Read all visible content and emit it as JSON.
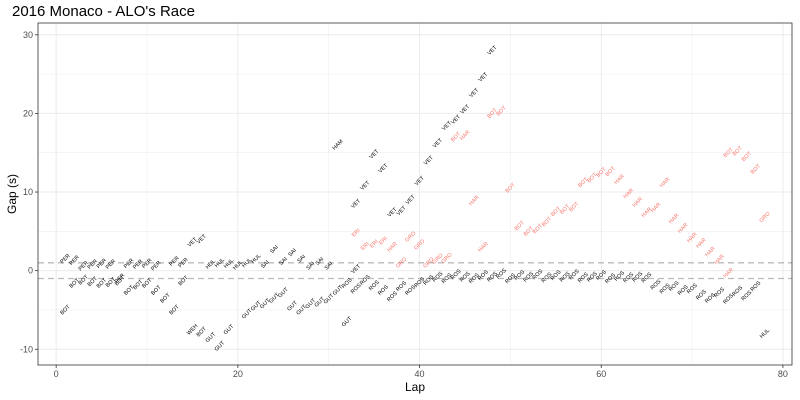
{
  "title": "2016 Monaco - ALO's Race",
  "chart_data": {
    "type": "scatter",
    "title": "2016 Monaco - ALO's Race",
    "xlabel": "Lap",
    "ylabel": "Gap (s)",
    "xlim": [
      -2,
      81
    ],
    "ylim": [
      -12,
      31.5
    ],
    "x_ticks": [
      0,
      20,
      40,
      60,
      80
    ],
    "y_ticks": [
      -10,
      0,
      10,
      20,
      30
    ],
    "reference_lines": [
      1,
      -1
    ],
    "grid": true,
    "colors": {
      "default": "#000000",
      "highlight": "#f8766d",
      "refline": "#bbbbbb",
      "panel_border": "#333333",
      "grid": "#ebebeb"
    },
    "series": [
      {
        "style": "default",
        "points": [
          {
            "x": 1,
            "y": 1.5,
            "label": "PER"
          },
          {
            "x": 1,
            "y": -5,
            "label": "BOT"
          },
          {
            "x": 2,
            "y": 1.3,
            "label": "PER"
          },
          {
            "x": 2,
            "y": -1.6,
            "label": "BOT"
          },
          {
            "x": 3,
            "y": 0.6,
            "label": "PER"
          },
          {
            "x": 3,
            "y": -1.2,
            "label": "BOT"
          },
          {
            "x": 4,
            "y": 0.8,
            "label": "PER"
          },
          {
            "x": 4,
            "y": -1.4,
            "label": "BOT"
          },
          {
            "x": 5,
            "y": 0.9,
            "label": "PER"
          },
          {
            "x": 5,
            "y": -1.6,
            "label": "BOT"
          },
          {
            "x": 6,
            "y": 0.8,
            "label": "PER"
          },
          {
            "x": 6,
            "y": -1.5,
            "label": "BOT"
          },
          {
            "x": 7,
            "y": -1.0,
            "label": "PER"
          },
          {
            "x": 7,
            "y": -1.3,
            "label": "BOT"
          },
          {
            "x": 8,
            "y": 0.9,
            "label": "PER"
          },
          {
            "x": 8,
            "y": -2.5,
            "label": "BOT"
          },
          {
            "x": 9,
            "y": 0.8,
            "label": "PER"
          },
          {
            "x": 9,
            "y": -1.8,
            "label": "BOT"
          },
          {
            "x": 10,
            "y": 0.9,
            "label": "PER"
          },
          {
            "x": 10,
            "y": -1.6,
            "label": "BOT"
          },
          {
            "x": 11,
            "y": 0.6,
            "label": "PER"
          },
          {
            "x": 11,
            "y": -2.5,
            "label": "BOT"
          },
          {
            "x": 12,
            "y": -3.5,
            "label": "BOT"
          },
          {
            "x": 13,
            "y": -5.0,
            "label": "BOT"
          },
          {
            "x": 14,
            "y": 1.0,
            "label": "PER"
          },
          {
            "x": 14,
            "y": -1.3,
            "label": "BOT"
          },
          {
            "x": 13,
            "y": 1.2,
            "label": "PER"
          },
          {
            "x": 15,
            "y": 3.6,
            "label": "VET"
          },
          {
            "x": 16,
            "y": 4.0,
            "label": "VET"
          },
          {
            "x": 15,
            "y": -7.5,
            "label": "WEH"
          },
          {
            "x": 16,
            "y": -7.8,
            "label": "BOT"
          },
          {
            "x": 17,
            "y": 0.8,
            "label": "HUL"
          },
          {
            "x": 18,
            "y": 1.0,
            "label": "HUL"
          },
          {
            "x": 19,
            "y": 0.9,
            "label": "HUL"
          },
          {
            "x": 20,
            "y": 0.7,
            "label": "HUL"
          },
          {
            "x": 21,
            "y": 1.0,
            "label": "HUL"
          },
          {
            "x": 22,
            "y": 1.5,
            "label": "HUL"
          },
          {
            "x": 17,
            "y": -8.5,
            "label": "GUT"
          },
          {
            "x": 18,
            "y": -9.6,
            "label": "GUT"
          },
          {
            "x": 19,
            "y": -7.5,
            "label": "GUT"
          },
          {
            "x": 21,
            "y": -5.5,
            "label": "GUT"
          },
          {
            "x": 22,
            "y": -4.5,
            "label": "GUT"
          },
          {
            "x": 23,
            "y": -4.2,
            "label": "GUT"
          },
          {
            "x": 24,
            "y": -3.5,
            "label": "GUT"
          },
          {
            "x": 25,
            "y": -2.8,
            "label": "GUT"
          },
          {
            "x": 26,
            "y": -4.5,
            "label": "GUT"
          },
          {
            "x": 27,
            "y": -5.0,
            "label": "GUT"
          },
          {
            "x": 28,
            "y": -4.2,
            "label": "GUT"
          },
          {
            "x": 29,
            "y": -4.0,
            "label": "GUT"
          },
          {
            "x": 30,
            "y": -3.6,
            "label": "GUT"
          },
          {
            "x": 31,
            "y": -2.5,
            "label": "GUT"
          },
          {
            "x": 32,
            "y": -6.5,
            "label": "GUT"
          },
          {
            "x": 23,
            "y": 0.8,
            "label": "SAI"
          },
          {
            "x": 24,
            "y": 2.7,
            "label": "SAI"
          },
          {
            "x": 25,
            "y": 1.2,
            "label": "SAI"
          },
          {
            "x": 26,
            "y": 2.3,
            "label": "SAI"
          },
          {
            "x": 27,
            "y": 1.5,
            "label": "SAI"
          },
          {
            "x": 28,
            "y": 0.6,
            "label": "SAI"
          },
          {
            "x": 29,
            "y": 1.2,
            "label": "SAI"
          },
          {
            "x": 30,
            "y": 0.6,
            "label": "SAI"
          },
          {
            "x": 33,
            "y": 0.2,
            "label": "VET"
          },
          {
            "x": 31,
            "y": 16.0,
            "label": "HAM"
          },
          {
            "x": 33,
            "y": 8.5,
            "label": "VET"
          },
          {
            "x": 34,
            "y": 10.8,
            "label": "VET"
          },
          {
            "x": 35,
            "y": 14.8,
            "label": "VET"
          },
          {
            "x": 36,
            "y": 13.0,
            "label": "VET"
          },
          {
            "x": 37,
            "y": 7.4,
            "label": "VET"
          },
          {
            "x": 38,
            "y": 7.6,
            "label": "VET"
          },
          {
            "x": 39,
            "y": 9.0,
            "label": "VET"
          },
          {
            "x": 40,
            "y": 11.4,
            "label": "VET"
          },
          {
            "x": 41,
            "y": 14.0,
            "label": "VET"
          },
          {
            "x": 42,
            "y": 16.2,
            "label": "VET"
          },
          {
            "x": 43,
            "y": 18.4,
            "label": "VET"
          },
          {
            "x": 44,
            "y": 19.2,
            "label": "VET"
          },
          {
            "x": 45,
            "y": 20.5,
            "label": "VET"
          },
          {
            "x": 46,
            "y": 22.6,
            "label": "VET"
          },
          {
            "x": 47,
            "y": 24.6,
            "label": "VET"
          },
          {
            "x": 48,
            "y": 28.0,
            "label": "VET"
          },
          {
            "x": 32,
            "y": -1.6,
            "label": "ROS"
          },
          {
            "x": 33,
            "y": -2.3,
            "label": "ROS"
          },
          {
            "x": 34,
            "y": -1.2,
            "label": "ROS"
          },
          {
            "x": 35,
            "y": -1.9,
            "label": "ROS"
          },
          {
            "x": 36,
            "y": -2.5,
            "label": "ROS"
          },
          {
            "x": 37,
            "y": -3.3,
            "label": "ROS"
          },
          {
            "x": 38,
            "y": -2.0,
            "label": "ROS"
          },
          {
            "x": 39,
            "y": -2.5,
            "label": "ROS"
          },
          {
            "x": 40,
            "y": -1.5,
            "label": "ROS"
          },
          {
            "x": 41,
            "y": -1.2,
            "label": "ROS"
          },
          {
            "x": 42,
            "y": -0.8,
            "label": "ROS"
          },
          {
            "x": 43,
            "y": -1.0,
            "label": "ROS"
          },
          {
            "x": 44,
            "y": -0.5,
            "label": "ROS"
          },
          {
            "x": 45,
            "y": -0.8,
            "label": "ROS"
          },
          {
            "x": 46,
            "y": -1.0,
            "label": "ROS"
          },
          {
            "x": 47,
            "y": -0.6,
            "label": "ROS"
          },
          {
            "x": 48,
            "y": -0.8,
            "label": "ROS"
          },
          {
            "x": 49,
            "y": -0.4,
            "label": "ROS"
          },
          {
            "x": 50,
            "y": -1.0,
            "label": "ROS"
          },
          {
            "x": 51,
            "y": -0.6,
            "label": "ROS"
          },
          {
            "x": 52,
            "y": -0.8,
            "label": "ROS"
          },
          {
            "x": 53,
            "y": -0.5,
            "label": "ROS"
          },
          {
            "x": 54,
            "y": -0.9,
            "label": "ROS"
          },
          {
            "x": 55,
            "y": -0.6,
            "label": "ROS"
          },
          {
            "x": 56,
            "y": -0.8,
            "label": "ROS"
          },
          {
            "x": 57,
            "y": -0.5,
            "label": "ROS"
          },
          {
            "x": 58,
            "y": -0.9,
            "label": "ROS"
          },
          {
            "x": 59,
            "y": -0.8,
            "label": "ROS"
          },
          {
            "x": 60,
            "y": -0.6,
            "label": "ROS"
          },
          {
            "x": 61,
            "y": -1.0,
            "label": "ROS"
          },
          {
            "x": 62,
            "y": -0.7,
            "label": "ROS"
          },
          {
            "x": 63,
            "y": -0.9,
            "label": "ROS"
          },
          {
            "x": 64,
            "y": -0.8,
            "label": "ROS"
          },
          {
            "x": 65,
            "y": -0.9,
            "label": "ROS"
          },
          {
            "x": 66,
            "y": -1.8,
            "label": "ROS"
          },
          {
            "x": 67,
            "y": -2.3,
            "label": "ROS"
          },
          {
            "x": 68,
            "y": -2.0,
            "label": "ROS"
          },
          {
            "x": 69,
            "y": -2.5,
            "label": "ROS"
          },
          {
            "x": 70,
            "y": -2.3,
            "label": "ROS"
          },
          {
            "x": 71,
            "y": -3.1,
            "label": "ROS"
          },
          {
            "x": 72,
            "y": -3.5,
            "label": "ROS"
          },
          {
            "x": 73,
            "y": -2.8,
            "label": "ROS"
          },
          {
            "x": 74,
            "y": -3.6,
            "label": "ROS"
          },
          {
            "x": 75,
            "y": -2.6,
            "label": "ROS"
          },
          {
            "x": 76,
            "y": -3.2,
            "label": "ROS"
          },
          {
            "x": 77,
            "y": -2.0,
            "label": "ROS"
          },
          {
            "x": 78,
            "y": -8.0,
            "label": "HUL"
          }
        ]
      },
      {
        "style": "highlight",
        "points": [
          {
            "x": 33,
            "y": 4.8,
            "label": "ERI"
          },
          {
            "x": 34,
            "y": 3.1,
            "label": "ERI"
          },
          {
            "x": 35,
            "y": 3.4,
            "label": "ERI"
          },
          {
            "x": 36,
            "y": 3.8,
            "label": "ERI"
          },
          {
            "x": 37,
            "y": 3.0,
            "label": "HAR"
          },
          {
            "x": 38,
            "y": 1.0,
            "label": "GRO"
          },
          {
            "x": 39,
            "y": 4.3,
            "label": "GRO"
          },
          {
            "x": 40,
            "y": 3.3,
            "label": "GRO"
          },
          {
            "x": 41,
            "y": 1.0,
            "label": "GRO"
          },
          {
            "x": 42,
            "y": 1.5,
            "label": "GRO"
          },
          {
            "x": 43,
            "y": 1.6,
            "label": "GRO"
          },
          {
            "x": 44,
            "y": 17.0,
            "label": "BOT"
          },
          {
            "x": 45,
            "y": 17.2,
            "label": "HAR"
          },
          {
            "x": 46,
            "y": 8.9,
            "label": "HAR"
          },
          {
            "x": 47,
            "y": 3.0,
            "label": "HAR"
          },
          {
            "x": 48,
            "y": 20.0,
            "label": "BOT"
          },
          {
            "x": 49,
            "y": 20.3,
            "label": "BOT"
          },
          {
            "x": 50,
            "y": 10.5,
            "label": "BOT"
          },
          {
            "x": 51,
            "y": 5.7,
            "label": "BOT"
          },
          {
            "x": 52,
            "y": 5.0,
            "label": "BOT"
          },
          {
            "x": 53,
            "y": 5.3,
            "label": "BOT"
          },
          {
            "x": 54,
            "y": 6.2,
            "label": "BOT"
          },
          {
            "x": 55,
            "y": 7.5,
            "label": "BOT"
          },
          {
            "x": 56,
            "y": 7.8,
            "label": "BOT"
          },
          {
            "x": 57,
            "y": 8.1,
            "label": "BOT"
          },
          {
            "x": 58,
            "y": 11.2,
            "label": "BOT"
          },
          {
            "x": 59,
            "y": 11.8,
            "label": "BOT"
          },
          {
            "x": 60,
            "y": 12.5,
            "label": "BOT"
          },
          {
            "x": 61,
            "y": 12.6,
            "label": "BOT"
          },
          {
            "x": 62,
            "y": 11.6,
            "label": "HAR"
          },
          {
            "x": 63,
            "y": 9.8,
            "label": "HAR"
          },
          {
            "x": 64,
            "y": 8.7,
            "label": "HAR"
          },
          {
            "x": 65,
            "y": 7.4,
            "label": "HAR"
          },
          {
            "x": 66,
            "y": 8.0,
            "label": "HAR"
          },
          {
            "x": 67,
            "y": 11.2,
            "label": "HAR"
          },
          {
            "x": 68,
            "y": 6.6,
            "label": "HAR"
          },
          {
            "x": 69,
            "y": 5.4,
            "label": "HAR"
          },
          {
            "x": 70,
            "y": 4.2,
            "label": "HAR"
          },
          {
            "x": 71,
            "y": 3.5,
            "label": "HAR"
          },
          {
            "x": 72,
            "y": 2.4,
            "label": "HAR"
          },
          {
            "x": 73,
            "y": 1.4,
            "label": "HAR"
          },
          {
            "x": 74,
            "y": -0.3,
            "label": "HAR"
          },
          {
            "x": 74,
            "y": 15.0,
            "label": "BOT"
          },
          {
            "x": 75,
            "y": 15.2,
            "label": "BOT"
          },
          {
            "x": 76,
            "y": 14.5,
            "label": "BOT"
          },
          {
            "x": 77,
            "y": 12.9,
            "label": "BOT"
          },
          {
            "x": 78,
            "y": 6.8,
            "label": "GRO"
          }
        ]
      }
    ]
  }
}
